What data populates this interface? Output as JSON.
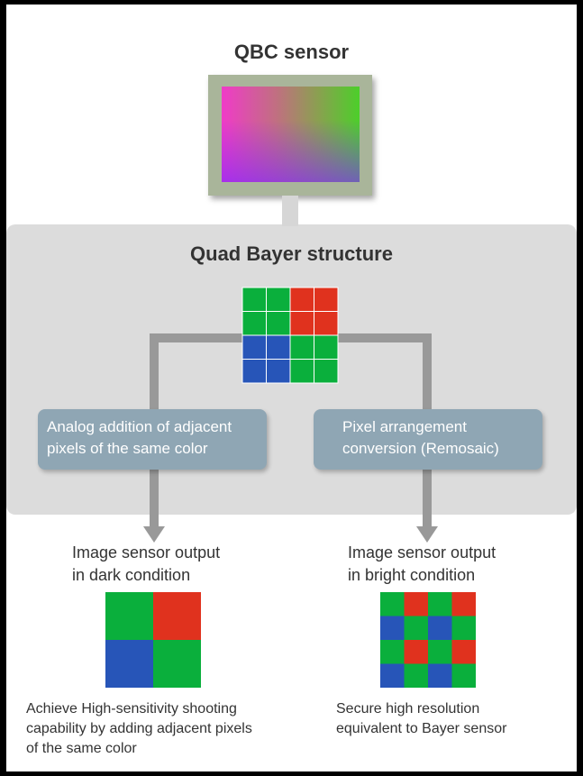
{
  "sensor": {
    "title": "QBC sensor"
  },
  "quad_bayer": {
    "title": "Quad Bayer structure",
    "grid": [
      [
        "green",
        "green",
        "red",
        "red"
      ],
      [
        "green",
        "green",
        "red",
        "red"
      ],
      [
        "blue",
        "blue",
        "green",
        "green"
      ],
      [
        "blue",
        "blue",
        "green",
        "green"
      ]
    ]
  },
  "left_path": {
    "process": [
      "Analog addition of adjacent",
      "pixels of the same color"
    ],
    "output_label": [
      "Image sensor output",
      "in dark condition"
    ],
    "grid": [
      [
        "green",
        "red"
      ],
      [
        "blue",
        "green"
      ]
    ],
    "description": [
      "Achieve High-sensitivity shooting",
      "capability by adding adjacent pixels",
      "of the same color"
    ]
  },
  "right_path": {
    "process": [
      "Pixel arrangement",
      "conversion (Remosaic)"
    ],
    "output_label": [
      "Image sensor output",
      "in bright condition"
    ],
    "grid": [
      [
        "green",
        "red",
        "green",
        "red"
      ],
      [
        "blue",
        "green",
        "blue",
        "green"
      ],
      [
        "green",
        "red",
        "green",
        "red"
      ],
      [
        "blue",
        "green",
        "blue",
        "green"
      ]
    ],
    "description": [
      "Secure high resolution",
      "equivalent to Bayer sensor"
    ]
  },
  "colors": {
    "green": "#0aaf3c",
    "red": "#e0321e",
    "blue": "#2755b8",
    "arrow": "#999999"
  }
}
